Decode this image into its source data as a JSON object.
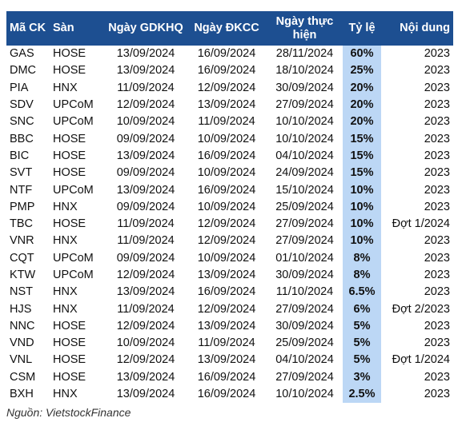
{
  "table": {
    "headers": [
      "Mã CK",
      "Sàn",
      "Ngày GDKHQ",
      "Ngày ĐKCC",
      "Ngày thực hiện",
      "Tỷ lệ",
      "Nội dung"
    ],
    "rows": [
      [
        "GAS",
        "HOSE",
        "13/09/2024",
        "16/09/2024",
        "28/11/2024",
        "60%",
        "2023"
      ],
      [
        "DMC",
        "HOSE",
        "13/09/2024",
        "16/09/2024",
        "18/10/2024",
        "25%",
        "2023"
      ],
      [
        "PIA",
        "HNX",
        "11/09/2024",
        "12/09/2024",
        "30/09/2024",
        "20%",
        "2023"
      ],
      [
        "SDV",
        "UPCoM",
        "12/09/2024",
        "13/09/2024",
        "27/09/2024",
        "20%",
        "2023"
      ],
      [
        "SNC",
        "UPCoM",
        "10/09/2024",
        "11/09/2024",
        "10/10/2024",
        "20%",
        "2023"
      ],
      [
        "BBC",
        "HOSE",
        "09/09/2024",
        "10/09/2024",
        "10/10/2024",
        "15%",
        "2023"
      ],
      [
        "BIC",
        "HOSE",
        "13/09/2024",
        "16/09/2024",
        "04/10/2024",
        "15%",
        "2023"
      ],
      [
        "SVT",
        "HOSE",
        "09/09/2024",
        "10/09/2024",
        "24/09/2024",
        "15%",
        "2023"
      ],
      [
        "NTF",
        "UPCoM",
        "13/09/2024",
        "16/09/2024",
        "15/10/2024",
        "10%",
        "2023"
      ],
      [
        "PMP",
        "HNX",
        "09/09/2024",
        "10/09/2024",
        "25/09/2024",
        "10%",
        "2023"
      ],
      [
        "TBC",
        "HOSE",
        "11/09/2024",
        "12/09/2024",
        "27/09/2024",
        "10%",
        "Đợt 1/2024"
      ],
      [
        "VNR",
        "HNX",
        "11/09/2024",
        "12/09/2024",
        "27/09/2024",
        "10%",
        "2023"
      ],
      [
        "CQT",
        "UPCoM",
        "09/09/2024",
        "10/09/2024",
        "01/10/2024",
        "8%",
        "2023"
      ],
      [
        "KTW",
        "UPCoM",
        "12/09/2024",
        "13/09/2024",
        "30/09/2024",
        "8%",
        "2023"
      ],
      [
        "NST",
        "HNX",
        "13/09/2024",
        "16/09/2024",
        "11/10/2024",
        "6.5%",
        "2023"
      ],
      [
        "HJS",
        "HNX",
        "11/09/2024",
        "12/09/2024",
        "27/09/2024",
        "6%",
        "Đợt 2/2023"
      ],
      [
        "NNC",
        "HOSE",
        "12/09/2024",
        "13/09/2024",
        "30/09/2024",
        "5%",
        "2023"
      ],
      [
        "VND",
        "HOSE",
        "10/09/2024",
        "11/09/2024",
        "25/09/2024",
        "5%",
        "2023"
      ],
      [
        "VNL",
        "HOSE",
        "12/09/2024",
        "13/09/2024",
        "04/10/2024",
        "5%",
        "Đợt 1/2024"
      ],
      [
        "CSM",
        "HOSE",
        "13/09/2024",
        "16/09/2024",
        "27/09/2024",
        "3%",
        "2023"
      ],
      [
        "BXH",
        "HNX",
        "13/09/2024",
        "16/09/2024",
        "10/10/2024",
        "2.5%",
        "2023"
      ]
    ]
  },
  "source": "Nguồn: VietstockFinance",
  "colors": {
    "header_bg": "#1d4f91",
    "header_text": "#ffffff",
    "rate_bg": "#bcd7f5"
  }
}
